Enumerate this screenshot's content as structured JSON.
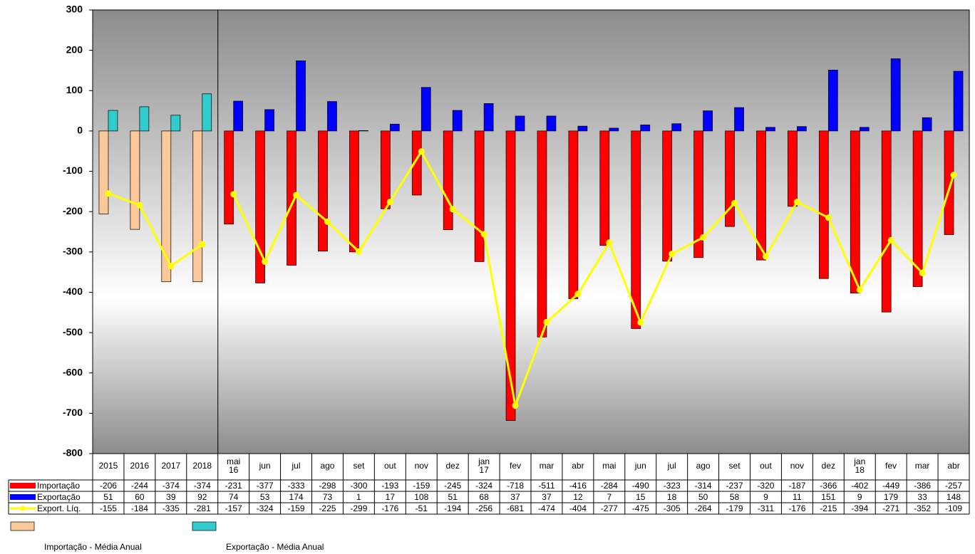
{
  "chart_data": {
    "type": "bar",
    "categories": [
      2015,
      2016,
      2017,
      2018,
      "mai 16",
      "jun",
      "jul",
      "ago",
      "set",
      "out",
      "nov",
      "dez",
      "jan 17",
      "fev",
      "mar",
      "abr",
      "mai",
      "jun",
      "jul",
      "ago",
      "set",
      "out",
      "nov",
      "dez",
      "jan 18",
      "fev",
      "mar",
      "abr"
    ],
    "series": [
      {
        "name": "Importação",
        "type": "bar",
        "color": "#ff0000",
        "annual_color": "#fbc999",
        "annual_name": "Importação - Média Anual",
        "values": [
          -206,
          -244,
          -374,
          -374,
          -231,
          -377,
          -333,
          -298,
          -300,
          -193,
          -159,
          -245,
          -324,
          -718,
          -511,
          -416,
          -284,
          -490,
          -323,
          -314,
          -237,
          -320,
          -187,
          -366,
          -402,
          -449,
          -386,
          -257
        ]
      },
      {
        "name": "Exportação",
        "type": "bar",
        "color": "#0000ff",
        "annual_color": "#33cccc",
        "annual_name": "Exportação - Média Anual",
        "values": [
          51,
          60,
          39,
          92,
          74,
          53,
          174,
          73,
          1,
          17,
          108,
          51,
          68,
          37,
          37,
          12,
          7,
          15,
          18,
          50,
          58,
          9,
          11,
          151,
          9,
          179,
          33,
          148
        ]
      },
      {
        "name": "Export. Líq.",
        "type": "line",
        "color": "#ffff00",
        "values": [
          -155,
          -184,
          -335,
          -281,
          -157,
          -324,
          -159,
          -225,
          -299,
          -176,
          -51,
          -194,
          -256,
          -681,
          -474,
          -404,
          -277,
          -475,
          -305,
          -264,
          -179,
          -311,
          -176,
          -215,
          -394,
          -271,
          -352,
          -109
        ]
      }
    ],
    "ylim": [
      -800,
      300
    ],
    "yticks": [
      -800,
      -700,
      -600,
      -500,
      -400,
      -300,
      -200,
      -100,
      0,
      100,
      200,
      300
    ]
  }
}
